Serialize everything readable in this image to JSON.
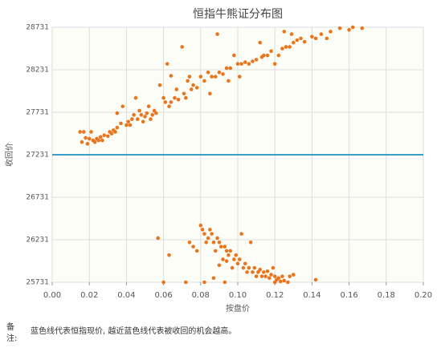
{
  "chart_data": {
    "type": "scatter",
    "title": "恒指牛熊证分布图",
    "x_label": "按盘价",
    "y_label": "收回价",
    "color": "#e8761e",
    "reference_line": 27231,
    "reference_color": "#3a9fc8",
    "grid": true,
    "xlim": [
      0,
      0.2
    ],
    "ylim": [
      25731,
      28731
    ],
    "xticks": [
      {
        "value": 0,
        "label": "0.00"
      },
      {
        "value": 0.02,
        "label": "0.02"
      },
      {
        "value": 0.04,
        "label": "0.04"
      },
      {
        "value": 0.06,
        "label": "0.06"
      },
      {
        "value": 0.08,
        "label": "0.08"
      },
      {
        "value": 0.1,
        "label": "0.10"
      },
      {
        "value": 0.12,
        "label": "0.12"
      },
      {
        "value": 0.14,
        "label": "0.14"
      },
      {
        "value": 0.16,
        "label": "0.16"
      },
      {
        "value": 0.18,
        "label": "0.18"
      },
      {
        "value": 0.2,
        "label": "0.20"
      }
    ],
    "yticks": [
      25731,
      26231,
      26731,
      27231,
      27731,
      28231,
      28731
    ],
    "x": [
      0.015,
      0.016,
      0.017,
      0.018,
      0.019,
      0.02,
      0.021,
      0.022,
      0.023,
      0.024,
      0.025,
      0.026,
      0.027,
      0.028,
      0.03,
      0.031,
      0.032,
      0.033,
      0.034,
      0.035,
      0.035,
      0.037,
      0.038,
      0.04,
      0.041,
      0.042,
      0.043,
      0.044,
      0.045,
      0.046,
      0.047,
      0.048,
      0.049,
      0.05,
      0.051,
      0.052,
      0.053,
      0.054,
      0.055,
      0.056,
      0.058,
      0.06,
      0.061,
      0.062,
      0.063,
      0.064,
      0.066,
      0.067,
      0.068,
      0.07,
      0.071,
      0.072,
      0.073,
      0.074,
      0.075,
      0.076,
      0.078,
      0.08,
      0.082,
      0.084,
      0.085,
      0.086,
      0.088,
      0.089,
      0.09,
      0.092,
      0.094,
      0.095,
      0.096,
      0.098,
      0.1,
      0.101,
      0.102,
      0.104,
      0.106,
      0.108,
      0.11,
      0.112,
      0.113,
      0.114,
      0.116,
      0.118,
      0.12,
      0.122,
      0.124,
      0.126,
      0.128,
      0.129,
      0.13,
      0.132,
      0.134,
      0.136,
      0.14,
      0.142,
      0.145,
      0.148,
      0.15,
      0.155,
      0.16,
      0.162,
      0.167,
      0.125,
      0.064,
      0.057,
      0.063,
      0.072,
      0.074,
      0.076,
      0.078,
      0.08,
      0.081,
      0.082,
      0.083,
      0.084,
      0.085,
      0.086,
      0.087,
      0.088,
      0.089,
      0.09,
      0.091,
      0.092,
      0.093,
      0.094,
      0.095,
      0.096,
      0.097,
      0.098,
      0.099,
      0.1,
      0.101,
      0.102,
      0.103,
      0.104,
      0.105,
      0.106,
      0.107,
      0.108,
      0.109,
      0.11,
      0.111,
      0.112,
      0.113,
      0.114,
      0.115,
      0.116,
      0.117,
      0.118,
      0.119,
      0.12,
      0.121,
      0.122,
      0.123,
      0.124,
      0.125,
      0.127,
      0.128,
      0.13,
      0.082,
      0.087,
      0.093,
      0.12,
      0.142,
      0.09,
      0.094,
      0.06
    ],
    "values": [
      27500,
      27380,
      27500,
      27430,
      27360,
      27420,
      27500,
      27400,
      27380,
      27420,
      27400,
      27440,
      27400,
      27460,
      27450,
      27500,
      27480,
      27520,
      27500,
      27550,
      27720,
      27600,
      27800,
      27580,
      27620,
      27580,
      27650,
      27700,
      27900,
      27650,
      27750,
      27700,
      27620,
      27680,
      27720,
      27800,
      27650,
      27700,
      27750,
      27720,
      28050,
      27900,
      27850,
      28300,
      27800,
      27850,
      27900,
      28000,
      27880,
      28500,
      27950,
      27900,
      28100,
      28150,
      28000,
      28050,
      28020,
      28150,
      28100,
      28200,
      27950,
      28150,
      28150,
      28650,
      28200,
      28180,
      28250,
      28100,
      28250,
      28400,
      28300,
      28150,
      28300,
      28320,
      28300,
      28330,
      28350,
      28550,
      28380,
      28400,
      28400,
      28450,
      28300,
      28400,
      28480,
      28500,
      28500,
      28650,
      28550,
      28580,
      28600,
      28560,
      28620,
      28600,
      28650,
      28600,
      28680,
      28720,
      28700,
      28731,
      28720,
      28680,
      28160,
      26250,
      26050,
      25731,
      26200,
      26150,
      26100,
      26400,
      26350,
      26300,
      26200,
      26250,
      26350,
      26300,
      26200,
      26100,
      26250,
      26200,
      26150,
      26000,
      26150,
      26100,
      26050,
      26100,
      25900,
      26000,
      26050,
      25950,
      26000,
      26300,
      25900,
      25950,
      25850,
      25900,
      26200,
      25850,
      25900,
      25800,
      25850,
      25880,
      25800,
      25850,
      25800,
      25860,
      25780,
      25820,
      25900,
      25800,
      25760,
      25780,
      25740,
      25800,
      25750,
      25731,
      25800,
      25820,
      25731,
      25780,
      25731,
      25731,
      25760,
      25931,
      25980,
      25731
    ]
  },
  "note": {
    "label": "备注:",
    "text": "蓝色线代表恒指现价, 越近蓝色线代表被收回的机会越高。"
  }
}
